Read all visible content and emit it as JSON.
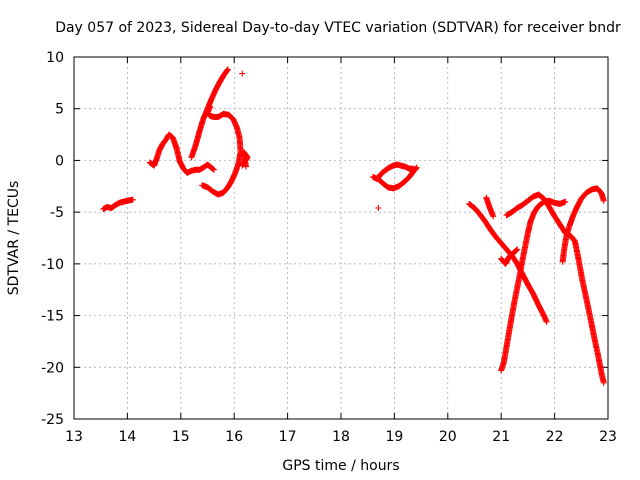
{
  "chart_data": {
    "type": "scatter",
    "title": "Day 057 of 2023, Sidereal Day-to-day VTEC variation (SDTVAR) for receiver bndr",
    "xlabel": "GPS time / hours",
    "ylabel": "SDTVAR / TECUs",
    "xlim": [
      13,
      23
    ],
    "ylim": [
      -25,
      10
    ],
    "x_ticks": [
      "13",
      "14",
      "15",
      "16",
      "17",
      "18",
      "19",
      "20",
      "21",
      "22",
      "23"
    ],
    "y_ticks": [
      "10",
      "5",
      "0",
      "-5",
      "-10",
      "-15",
      "-20",
      "-25"
    ],
    "grid": true,
    "marker": "plus",
    "color": "#ff0000",
    "series": [
      {
        "segments": [
          [
            [
              13.55,
              -4.7
            ],
            [
              13.62,
              -4.5
            ],
            [
              13.7,
              -4.6
            ],
            [
              13.78,
              -4.3
            ],
            [
              13.85,
              -4.1
            ],
            [
              13.92,
              -4.0
            ],
            [
              14.0,
              -3.9
            ],
            [
              14.1,
              -3.8
            ]
          ],
          [
            [
              14.42,
              -0.2
            ],
            [
              14.5,
              -0.5
            ],
            [
              14.55,
              0.2
            ],
            [
              14.6,
              1.0
            ],
            [
              14.65,
              1.5
            ],
            [
              14.72,
              2.0
            ],
            [
              14.78,
              2.5
            ],
            [
              14.85,
              2.2
            ],
            [
              14.92,
              1.2
            ],
            [
              14.98,
              -0.1
            ],
            [
              15.05,
              -0.8
            ],
            [
              15.12,
              -1.2
            ],
            [
              15.2,
              -1.0
            ],
            [
              15.28,
              -0.9
            ],
            [
              15.35,
              -0.9
            ],
            [
              15.42,
              -0.7
            ],
            [
              15.5,
              -0.4
            ],
            [
              15.55,
              -0.6
            ],
            [
              15.62,
              -0.9
            ]
          ],
          [
            [
              15.2,
              0.3
            ],
            [
              15.28,
              1.5
            ],
            [
              15.35,
              2.8
            ],
            [
              15.42,
              4.0
            ],
            [
              15.5,
              5.0
            ],
            [
              15.58,
              6.0
            ],
            [
              15.65,
              6.8
            ],
            [
              15.72,
              7.5
            ],
            [
              15.8,
              8.2
            ],
            [
              15.88,
              8.8
            ]
          ],
          [
            [
              15.4,
              -2.4
            ],
            [
              15.5,
              -2.6
            ],
            [
              15.6,
              -3.0
            ],
            [
              15.7,
              -3.3
            ],
            [
              15.8,
              -3.1
            ],
            [
              15.88,
              -2.6
            ],
            [
              15.95,
              -2.0
            ],
            [
              16.02,
              -1.2
            ],
            [
              16.08,
              -0.3
            ],
            [
              16.12,
              0.8
            ],
            [
              16.1,
              2.2
            ],
            [
              16.05,
              3.2
            ],
            [
              15.98,
              4.0
            ],
            [
              15.9,
              4.4
            ],
            [
              15.8,
              4.5
            ],
            [
              15.7,
              4.2
            ],
            [
              15.62,
              4.2
            ],
            [
              15.55,
              4.3
            ],
            [
              15.5,
              4.6
            ],
            [
              15.55,
              5.2
            ]
          ],
          [
            [
              16.15,
              -0.5
            ],
            [
              16.2,
              -0.1
            ],
            [
              16.25,
              0.3
            ],
            [
              16.18,
              0.8
            ],
            [
              16.22,
              -0.6
            ]
          ],
          [
            [
              18.6,
              -1.6
            ],
            [
              18.68,
              -1.8
            ],
            [
              18.75,
              -1.3
            ],
            [
              18.82,
              -1.0
            ],
            [
              18.9,
              -0.7
            ],
            [
              18.98,
              -0.5
            ],
            [
              19.05,
              -0.4
            ],
            [
              19.12,
              -0.5
            ],
            [
              19.2,
              -0.6
            ],
            [
              19.28,
              -0.8
            ],
            [
              19.36,
              -0.8
            ]
          ],
          [
            [
              18.68,
              -1.7
            ],
            [
              18.78,
              -2.2
            ],
            [
              18.88,
              -2.6
            ],
            [
              18.98,
              -2.7
            ],
            [
              19.08,
              -2.5
            ],
            [
              19.18,
              -2.1
            ],
            [
              19.28,
              -1.6
            ],
            [
              19.38,
              -0.9
            ],
            [
              19.42,
              -0.7
            ]
          ],
          [
            [
              20.4,
              -4.2
            ],
            [
              20.5,
              -4.6
            ],
            [
              20.6,
              -5.2
            ],
            [
              20.7,
              -5.9
            ],
            [
              20.8,
              -6.7
            ],
            [
              20.9,
              -7.4
            ],
            [
              21.0,
              -8.0
            ],
            [
              21.1,
              -8.6
            ],
            [
              21.2,
              -9.2
            ],
            [
              21.3,
              -10.0
            ],
            [
              21.4,
              -11.0
            ],
            [
              21.5,
              -12.0
            ],
            [
              21.6,
              -12.9
            ],
            [
              21.7,
              -14.0
            ],
            [
              21.8,
              -15.0
            ],
            [
              21.85,
              -15.6
            ]
          ],
          [
            [
              20.72,
              -3.6
            ],
            [
              20.78,
              -4.5
            ],
            [
              20.85,
              -5.4
            ]
          ],
          [
            [
              21.0,
              -20.3
            ],
            [
              21.05,
              -19.5
            ],
            [
              21.1,
              -18.0
            ],
            [
              21.15,
              -16.5
            ],
            [
              21.2,
              -15.0
            ],
            [
              21.25,
              -13.6
            ],
            [
              21.3,
              -12.3
            ],
            [
              21.35,
              -11.0
            ],
            [
              21.4,
              -9.6
            ],
            [
              21.45,
              -8.3
            ],
            [
              21.5,
              -7.0
            ],
            [
              21.55,
              -5.9
            ],
            [
              21.62,
              -5.0
            ],
            [
              21.7,
              -4.4
            ],
            [
              21.8,
              -4.0
            ],
            [
              21.9,
              -3.9
            ],
            [
              22.0,
              -4.1
            ],
            [
              22.1,
              -4.2
            ],
            [
              22.2,
              -4.0
            ]
          ],
          [
            [
              21.0,
              -9.5
            ],
            [
              21.08,
              -10.0
            ],
            [
              21.15,
              -9.3
            ],
            [
              21.22,
              -9.0
            ],
            [
              21.3,
              -8.6
            ]
          ],
          [
            [
              21.1,
              -5.3
            ],
            [
              21.2,
              -5.0
            ],
            [
              21.3,
              -4.6
            ],
            [
              21.4,
              -4.3
            ],
            [
              21.5,
              -3.9
            ],
            [
              21.6,
              -3.5
            ],
            [
              21.7,
              -3.3
            ],
            [
              21.8,
              -3.7
            ],
            [
              21.9,
              -4.5
            ],
            [
              22.0,
              -5.4
            ],
            [
              22.1,
              -6.2
            ],
            [
              22.2,
              -7.0
            ],
            [
              22.3,
              -7.3
            ],
            [
              22.38,
              -7.8
            ],
            [
              22.45,
              -9.6
            ],
            [
              22.52,
              -11.6
            ],
            [
              22.6,
              -13.5
            ],
            [
              22.68,
              -15.5
            ],
            [
              22.75,
              -17.3
            ],
            [
              22.82,
              -19.0
            ],
            [
              22.88,
              -20.6
            ],
            [
              22.92,
              -21.5
            ]
          ],
          [
            [
              22.15,
              -9.8
            ],
            [
              22.18,
              -8.6
            ],
            [
              22.22,
              -7.3
            ],
            [
              22.28,
              -6.3
            ],
            [
              22.35,
              -5.3
            ],
            [
              22.42,
              -4.5
            ],
            [
              22.5,
              -3.7
            ],
            [
              22.6,
              -3.1
            ],
            [
              22.7,
              -2.8
            ],
            [
              22.8,
              -2.7
            ],
            [
              22.88,
              -3.2
            ],
            [
              22.92,
              -3.9
            ]
          ]
        ]
      }
    ],
    "isolated_points": [
      [
        16.15,
        8.4
      ],
      [
        18.7,
        -4.6
      ]
    ]
  }
}
